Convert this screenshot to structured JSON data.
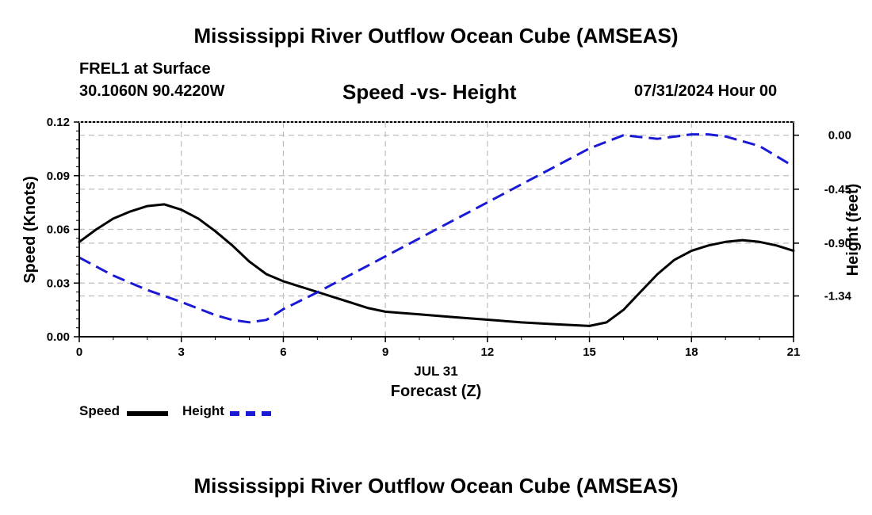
{
  "header": {
    "main_title": "Mississippi River Outflow Ocean Cube (AMSEAS)",
    "station": "FREL1 at Surface",
    "coordinates": "30.1060N  90.4220W",
    "subtitle": "Speed -vs- Height",
    "datetime": "07/31/2024 Hour 00"
  },
  "footer": {
    "title": "Mississippi River Outflow Ocean Cube (AMSEAS)"
  },
  "legend": {
    "speed_label": "Speed",
    "height_label": "Height"
  },
  "chart_data": {
    "type": "line",
    "title": "Speed -vs- Height",
    "xlabel": "Forecast (Z)",
    "date_label": "JUL 31",
    "ylabel_left": "Speed (Knots)",
    "ylabel_right": "Height (feet)",
    "xlim": [
      0,
      21
    ],
    "ylim_left": [
      0,
      0.12
    ],
    "ylim_right": [
      -1.68,
      0.11
    ],
    "x_ticks": [
      0,
      3,
      6,
      9,
      12,
      15,
      18,
      21
    ],
    "x_tick_labels": [
      "0",
      "3",
      "6",
      "9",
      "12",
      "15",
      "18",
      "21"
    ],
    "y_left_ticks": [
      0,
      0.03,
      0.06,
      0.09,
      0.12
    ],
    "y_left_tick_labels": [
      "0.00",
      "0.03",
      "0.06",
      "0.09",
      "0.12"
    ],
    "y_right_ticks": [
      0,
      -0.45,
      -0.9,
      -1.34
    ],
    "y_right_tick_labels": [
      "0.00",
      "-0.45",
      "-0.90",
      "-1.34"
    ],
    "grid": true,
    "series": [
      {
        "name": "Speed",
        "axis": "left",
        "color": "#000000",
        "style": "solid",
        "x": [
          0,
          0.5,
          1,
          1.5,
          2,
          2.5,
          3,
          3.5,
          4,
          4.5,
          5,
          5.5,
          6,
          6.5,
          7,
          7.5,
          8,
          8.5,
          9,
          10,
          11,
          12,
          13,
          14,
          15,
          15.5,
          16,
          16.5,
          17,
          17.5,
          18,
          18.5,
          19,
          19.5,
          20,
          20.5,
          21
        ],
        "values": [
          0.053,
          0.06,
          0.066,
          0.07,
          0.073,
          0.074,
          0.071,
          0.066,
          0.059,
          0.051,
          0.042,
          0.035,
          0.031,
          0.028,
          0.025,
          0.022,
          0.019,
          0.016,
          0.014,
          0.0125,
          0.011,
          0.0095,
          0.008,
          0.007,
          0.006,
          0.008,
          0.015,
          0.025,
          0.035,
          0.043,
          0.048,
          0.051,
          0.053,
          0.054,
          0.053,
          0.051,
          0.048
        ]
      },
      {
        "name": "Height",
        "axis": "right",
        "color": "#1a1ad6",
        "style": "dashed",
        "x": [
          0,
          1,
          2,
          3,
          4,
          4.5,
          5,
          5.5,
          6,
          7,
          8,
          9,
          10,
          11,
          12,
          13,
          14,
          15,
          16,
          17,
          18,
          18.5,
          19,
          20,
          21
        ],
        "values": [
          -1.02,
          -1.17,
          -1.29,
          -1.39,
          -1.5,
          -1.54,
          -1.56,
          -1.54,
          -1.45,
          -1.31,
          -1.16,
          -1.01,
          -0.86,
          -0.71,
          -0.56,
          -0.41,
          -0.26,
          -0.11,
          0.0,
          -0.03,
          0.007,
          0.007,
          -0.01,
          -0.09,
          -0.26
        ]
      }
    ]
  }
}
